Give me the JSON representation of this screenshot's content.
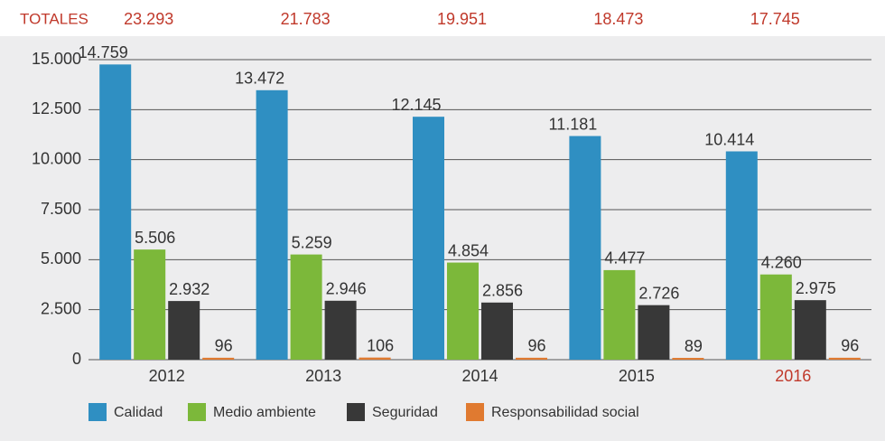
{
  "chart_data": {
    "type": "bar",
    "totals_label": "TOTALES",
    "totals": [
      23293,
      21783,
      19951,
      18473,
      17745
    ],
    "totals_labels": [
      "23.293",
      "21.783",
      "19.951",
      "18.473",
      "17.745"
    ],
    "categories": [
      "2012",
      "2013",
      "2014",
      "2015",
      "2016"
    ],
    "series": [
      {
        "name": "Calidad",
        "color": "#2f8fc2",
        "values": [
          14759,
          13472,
          12145,
          11181,
          10414
        ],
        "value_labels": [
          "14.759",
          "13.472",
          "12.145",
          "11.181",
          "10.414"
        ]
      },
      {
        "name": "Medio ambiente",
        "color": "#7cb83a",
        "values": [
          5506,
          5259,
          4854,
          4477,
          4260
        ],
        "value_labels": [
          "5.506",
          "5.259",
          "4.854",
          "4.477",
          "4.260"
        ]
      },
      {
        "name": "Seguridad",
        "color": "#383838",
        "values": [
          2932,
          2946,
          2856,
          2726,
          2975
        ],
        "value_labels": [
          "2.932",
          "2.946",
          "2.856",
          "2.726",
          "2.975"
        ]
      },
      {
        "name": "Responsabilidad social",
        "color": "#e07a30",
        "values": [
          96,
          106,
          96,
          89,
          96
        ]
      }
    ],
    "ylim": [
      0,
      15000
    ],
    "yticks": [
      0,
      {
        "value": 2500,
        "label": "2.500"
      },
      {
        "value": 5000,
        "label": "5.000"
      },
      {
        "value": 7500,
        "label": "7.500"
      },
      {
        "value": 10000,
        "label": "10.000"
      },
      {
        "value": 12500,
        "label": "12.500"
      },
      {
        "value": 15000,
        "label": "15.000"
      }
    ],
    "grid": true
  }
}
